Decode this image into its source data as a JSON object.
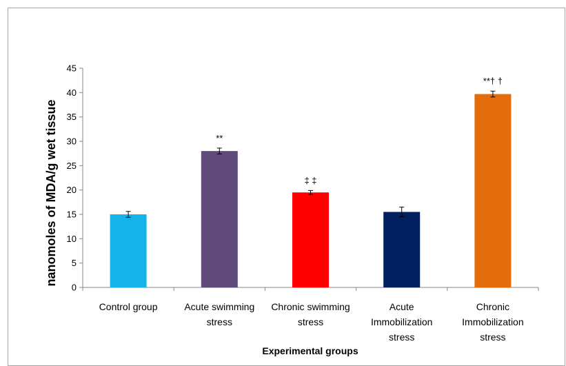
{
  "chart_data": {
    "type": "bar",
    "title": "",
    "xlabel": "Experimental groups",
    "ylabel": "nanomoles of MDA/g wet tissue",
    "ylim": [
      0,
      45
    ],
    "yticks": [
      0,
      5,
      10,
      15,
      20,
      25,
      30,
      35,
      40,
      45
    ],
    "grid": false,
    "legend": "none",
    "categories": [
      [
        "Control group"
      ],
      [
        "Acute swimming",
        "stress"
      ],
      [
        "Chronic swimming",
        "stress"
      ],
      [
        "Acute",
        "Immobilization",
        "stress"
      ],
      [
        "Chronic",
        "Immobilization",
        "stress"
      ]
    ],
    "values": [
      15.0,
      28.0,
      19.5,
      15.5,
      39.7
    ],
    "errors": [
      0.6,
      0.6,
      0.4,
      1.0,
      0.6
    ],
    "annotations": [
      "",
      "**",
      "‡ ‡",
      "",
      "**† †"
    ],
    "colors": [
      "#14b4eb",
      "#604a7b",
      "#ff0000",
      "#002060",
      "#e46c0a"
    ]
  }
}
